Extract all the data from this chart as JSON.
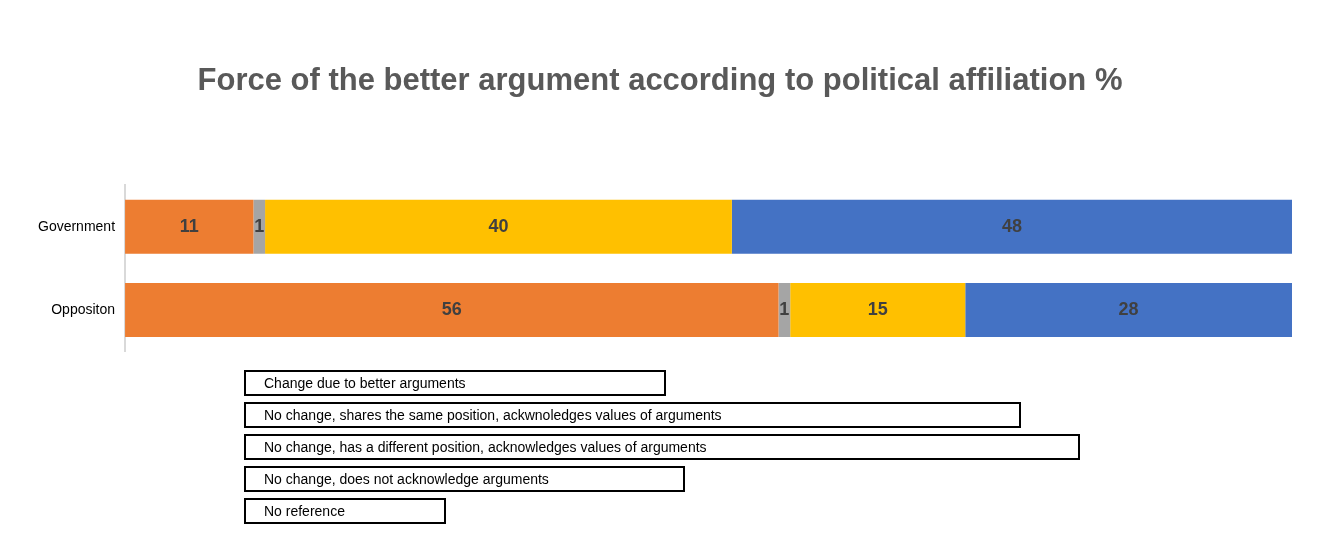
{
  "chart_data": {
    "type": "bar",
    "orientation": "horizontal",
    "stacked": true,
    "title": "Force of the better argument according to political affiliation %",
    "categories": [
      "Government",
      "Oppositon"
    ],
    "series": [
      {
        "color": "#ed7d31",
        "values": [
          11,
          56
        ]
      },
      {
        "color": "#a5a5a5",
        "values": [
          1,
          1
        ]
      },
      {
        "color": "#ffc000",
        "values": [
          40,
          15
        ]
      },
      {
        "color": "#4472c4",
        "values": [
          48,
          28
        ]
      }
    ],
    "xlim": [
      0,
      100
    ],
    "tick_labels": "y",
    "grid": false,
    "legend": false,
    "data_labels": true,
    "annotations": [
      "Change due to better arguments",
      "No change, shares the same position, ackwnoledges values of arguments",
      "No change, has a different position, acknowledges values of arguments",
      "No change, does not  acknowledge arguments",
      "No reference"
    ]
  }
}
